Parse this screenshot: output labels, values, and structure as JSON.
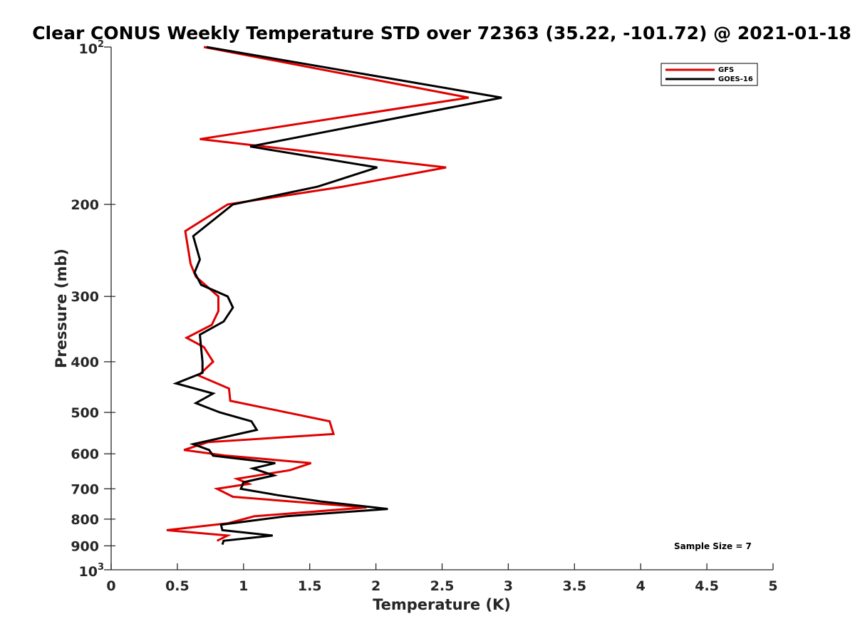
{
  "chart_data": {
    "type": "line",
    "title": "Clear CONUS Weekly Temperature STD over 72363 (35.22, -101.72) @ 2021-01-18",
    "xlabel": "Temperature (K)",
    "ylabel": "Pressure (mb)",
    "xlim": [
      0,
      5
    ],
    "ylim": [
      100,
      1000
    ],
    "y_scale": "log",
    "y_reversed": true,
    "x_ticks": [
      0,
      0.5,
      1,
      1.5,
      2,
      2.5,
      3,
      3.5,
      4,
      4.5,
      5
    ],
    "x_tick_labels": [
      "0",
      "0.5",
      "1",
      "1.5",
      "2",
      "2.5",
      "3",
      "3.5",
      "4",
      "4.5",
      "5"
    ],
    "y_ticks": [
      200,
      300,
      400,
      500,
      600,
      700,
      800,
      900
    ],
    "y_tick_labels": [
      "200",
      "300",
      "400",
      "500",
      "600",
      "700",
      "800",
      "900"
    ],
    "y_decade_labels": [
      {
        "value": 100,
        "base": "10",
        "exp": "2"
      },
      {
        "value": 1000,
        "base": "10",
        "exp": "3"
      }
    ],
    "grid": false,
    "legend_position": "top-right",
    "series": [
      {
        "name": "GFS",
        "color": "#e00000",
        "points": [
          [
            0.7,
            100
          ],
          [
            2.7,
            125
          ],
          [
            0.67,
            150
          ],
          [
            2.53,
            170
          ],
          [
            1.75,
            185
          ],
          [
            0.88,
            200
          ],
          [
            0.56,
            225
          ],
          [
            0.6,
            260
          ],
          [
            0.64,
            275
          ],
          [
            0.81,
            300
          ],
          [
            0.81,
            320
          ],
          [
            0.76,
            340
          ],
          [
            0.57,
            360
          ],
          [
            0.7,
            375
          ],
          [
            0.77,
            400
          ],
          [
            0.66,
            425
          ],
          [
            0.89,
            450
          ],
          [
            0.9,
            475
          ],
          [
            1.65,
            520
          ],
          [
            1.68,
            550
          ],
          [
            0.73,
            570
          ],
          [
            0.55,
            590
          ],
          [
            0.87,
            605
          ],
          [
            1.51,
            625
          ],
          [
            1.35,
            645
          ],
          [
            0.95,
            670
          ],
          [
            1.04,
            685
          ],
          [
            0.8,
            700
          ],
          [
            0.92,
            725
          ],
          [
            1.93,
            760
          ],
          [
            1.08,
            790
          ],
          [
            0.88,
            815
          ],
          [
            0.42,
            840
          ],
          [
            0.88,
            860
          ],
          [
            0.8,
            880
          ]
        ]
      },
      {
        "name": "GOES-16",
        "color": "#000000",
        "points": [
          [
            0.72,
            100
          ],
          [
            2.95,
            125
          ],
          [
            1.05,
            155
          ],
          [
            2.01,
            170
          ],
          [
            1.56,
            185
          ],
          [
            0.92,
            200
          ],
          [
            0.62,
            230
          ],
          [
            0.67,
            255
          ],
          [
            0.63,
            270
          ],
          [
            0.68,
            285
          ],
          [
            0.88,
            300
          ],
          [
            0.92,
            315
          ],
          [
            0.85,
            335
          ],
          [
            0.67,
            355
          ],
          [
            0.69,
            400
          ],
          [
            0.69,
            420
          ],
          [
            0.49,
            440
          ],
          [
            0.77,
            460
          ],
          [
            0.64,
            480
          ],
          [
            0.82,
            500
          ],
          [
            1.06,
            520
          ],
          [
            1.1,
            540
          ],
          [
            0.62,
            575
          ],
          [
            0.74,
            590
          ],
          [
            0.77,
            605
          ],
          [
            1.24,
            625
          ],
          [
            1.07,
            640
          ],
          [
            1.23,
            660
          ],
          [
            1.0,
            680
          ],
          [
            0.98,
            700
          ],
          [
            1.26,
            720
          ],
          [
            1.58,
            740
          ],
          [
            2.09,
            765
          ],
          [
            1.32,
            790
          ],
          [
            0.83,
            820
          ],
          [
            0.84,
            840
          ],
          [
            1.22,
            860
          ],
          [
            0.85,
            880
          ],
          [
            0.84,
            895
          ]
        ]
      }
    ],
    "annotations": [
      {
        "text": "Sample Size = 7"
      }
    ]
  }
}
